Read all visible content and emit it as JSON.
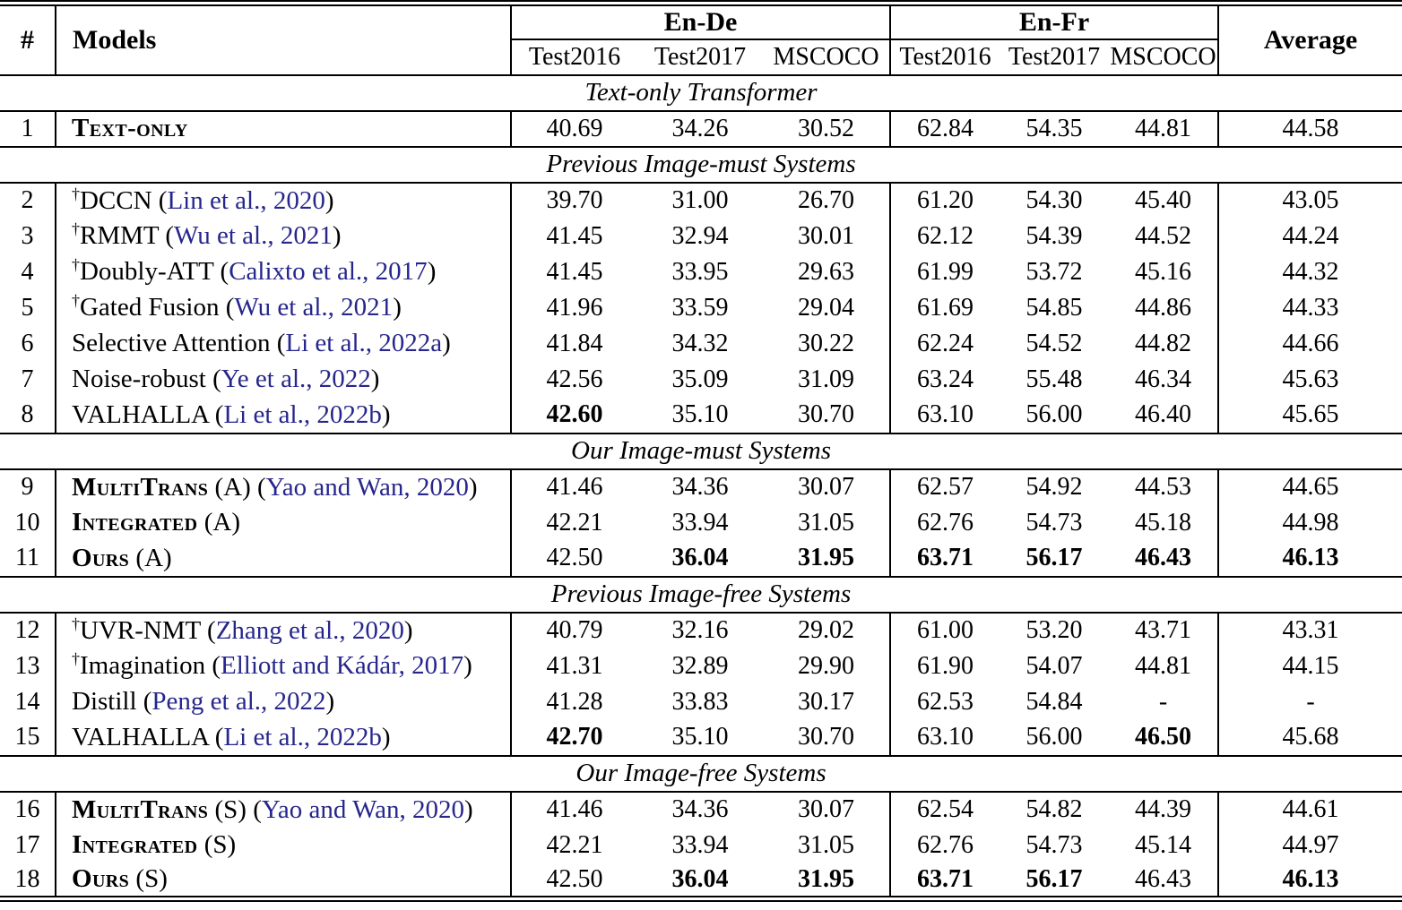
{
  "colors": {
    "citation": "#26268c",
    "text": "#000000",
    "background": "#ffffff"
  },
  "header": {
    "hash": "#",
    "models": "Models",
    "groups": [
      {
        "label": "En-De",
        "subs": [
          "Test2016",
          "Test2017",
          "MSCOCO"
        ]
      },
      {
        "label": "En-Fr",
        "subs": [
          "Test2016",
          "Test2017",
          "MSCOCO"
        ]
      }
    ],
    "average": "Average"
  },
  "sections": [
    {
      "title": "Text-only Transformer",
      "rows": [
        {
          "num": "1",
          "dagger": "",
          "sc": "Text-only",
          "pre": "",
          "cite": "",
          "post": "",
          "values": [
            "40.69",
            "34.26",
            "30.52",
            "62.84",
            "54.35",
            "44.81",
            "44.58"
          ],
          "bold": [
            0,
            0,
            0,
            0,
            0,
            0,
            0
          ]
        }
      ]
    },
    {
      "title": "Previous Image-must Systems",
      "rows": [
        {
          "num": "2",
          "dagger": "†",
          "sc": "",
          "pre": "DCCN (",
          "cite": "Lin et al., 2020",
          "post": ")",
          "values": [
            "39.70",
            "31.00",
            "26.70",
            "61.20",
            "54.30",
            "45.40",
            "43.05"
          ],
          "bold": [
            0,
            0,
            0,
            0,
            0,
            0,
            0
          ]
        },
        {
          "num": "3",
          "dagger": "†",
          "sc": "",
          "pre": "RMMT (",
          "cite": "Wu et al., 2021",
          "post": ")",
          "values": [
            "41.45",
            "32.94",
            "30.01",
            "62.12",
            "54.39",
            "44.52",
            "44.24"
          ],
          "bold": [
            0,
            0,
            0,
            0,
            0,
            0,
            0
          ]
        },
        {
          "num": "4",
          "dagger": "†",
          "sc": "",
          "pre": "Doubly-ATT (",
          "cite": "Calixto et al., 2017",
          "post": ")",
          "values": [
            "41.45",
            "33.95",
            "29.63",
            "61.99",
            "53.72",
            "45.16",
            "44.32"
          ],
          "bold": [
            0,
            0,
            0,
            0,
            0,
            0,
            0
          ]
        },
        {
          "num": "5",
          "dagger": "†",
          "sc": "",
          "pre": "Gated Fusion (",
          "cite": "Wu et al., 2021",
          "post": ")",
          "values": [
            "41.96",
            "33.59",
            "29.04",
            "61.69",
            "54.85",
            "44.86",
            "44.33"
          ],
          "bold": [
            0,
            0,
            0,
            0,
            0,
            0,
            0
          ]
        },
        {
          "num": "6",
          "dagger": "",
          "sc": "",
          "pre": "Selective Attention (",
          "cite": "Li et al., 2022a",
          "post": ")",
          "values": [
            "41.84",
            "34.32",
            "30.22",
            "62.24",
            "54.52",
            "44.82",
            "44.66"
          ],
          "bold": [
            0,
            0,
            0,
            0,
            0,
            0,
            0
          ]
        },
        {
          "num": "7",
          "dagger": "",
          "sc": "",
          "pre": "Noise-robust (",
          "cite": "Ye et al., 2022",
          "post": ")",
          "values": [
            "42.56",
            "35.09",
            "31.09",
            "63.24",
            "55.48",
            "46.34",
            "45.63"
          ],
          "bold": [
            0,
            0,
            0,
            0,
            0,
            0,
            0
          ]
        },
        {
          "num": "8",
          "dagger": "",
          "sc": "",
          "pre": "VALHALLA (",
          "cite": "Li et al., 2022b",
          "post": ")",
          "values": [
            "42.60",
            "35.10",
            "30.70",
            "63.10",
            "56.00",
            "46.40",
            "45.65"
          ],
          "bold": [
            1,
            0,
            0,
            0,
            0,
            0,
            0
          ]
        }
      ]
    },
    {
      "title": "Our Image-must Systems",
      "rows": [
        {
          "num": "9",
          "dagger": "",
          "sc": "MultiTrans",
          "pre": " (A) (",
          "cite": "Yao and Wan, 2020",
          "post": ")",
          "values": [
            "41.46",
            "34.36",
            "30.07",
            "62.57",
            "54.92",
            "44.53",
            "44.65"
          ],
          "bold": [
            0,
            0,
            0,
            0,
            0,
            0,
            0
          ]
        },
        {
          "num": "10",
          "dagger": "",
          "sc": "Integrated",
          "pre": " (A)",
          "cite": "",
          "post": "",
          "values": [
            "42.21",
            "33.94",
            "31.05",
            "62.76",
            "54.73",
            "45.18",
            "44.98"
          ],
          "bold": [
            0,
            0,
            0,
            0,
            0,
            0,
            0
          ]
        },
        {
          "num": "11",
          "dagger": "",
          "sc": "Ours",
          "pre": " (A)",
          "cite": "",
          "post": "",
          "values": [
            "42.50",
            "36.04",
            "31.95",
            "63.71",
            "56.17",
            "46.43",
            "46.13"
          ],
          "bold": [
            0,
            1,
            1,
            1,
            1,
            1,
            1
          ]
        }
      ]
    },
    {
      "title": "Previous Image-free Systems",
      "rows": [
        {
          "num": "12",
          "dagger": "†",
          "sc": "",
          "pre": "UVR-NMT (",
          "cite": "Zhang et al., 2020",
          "post": ")",
          "values": [
            "40.79",
            "32.16",
            "29.02",
            "61.00",
            "53.20",
            "43.71",
            "43.31"
          ],
          "bold": [
            0,
            0,
            0,
            0,
            0,
            0,
            0
          ]
        },
        {
          "num": "13",
          "dagger": "†",
          "sc": "",
          "pre": "Imagination (",
          "cite": "Elliott and Kádár, 2017",
          "post": ")",
          "values": [
            "41.31",
            "32.89",
            "29.90",
            "61.90",
            "54.07",
            "44.81",
            "44.15"
          ],
          "bold": [
            0,
            0,
            0,
            0,
            0,
            0,
            0
          ]
        },
        {
          "num": "14",
          "dagger": "",
          "sc": "",
          "pre": "Distill (",
          "cite": "Peng et al., 2022",
          "post": ")",
          "values": [
            "41.28",
            "33.83",
            "30.17",
            "62.53",
            "54.84",
            "-",
            "-"
          ],
          "bold": [
            0,
            0,
            0,
            0,
            0,
            0,
            0
          ]
        },
        {
          "num": "15",
          "dagger": "",
          "sc": "",
          "pre": "VALHALLA (",
          "cite": "Li et al., 2022b",
          "post": ")",
          "values": [
            "42.70",
            "35.10",
            "30.70",
            "63.10",
            "56.00",
            "46.50",
            "45.68"
          ],
          "bold": [
            1,
            0,
            0,
            0,
            0,
            1,
            0
          ]
        }
      ]
    },
    {
      "title": "Our Image-free Systems",
      "rows": [
        {
          "num": "16",
          "dagger": "",
          "sc": "MultiTrans",
          "pre": " (S) (",
          "cite": "Yao and Wan, 2020",
          "post": ")",
          "values": [
            "41.46",
            "34.36",
            "30.07",
            "62.54",
            "54.82",
            "44.39",
            "44.61"
          ],
          "bold": [
            0,
            0,
            0,
            0,
            0,
            0,
            0
          ]
        },
        {
          "num": "17",
          "dagger": "",
          "sc": "Integrated",
          "pre": " (S)",
          "cite": "",
          "post": "",
          "values": [
            "42.21",
            "33.94",
            "31.05",
            "62.76",
            "54.73",
            "45.14",
            "44.97"
          ],
          "bold": [
            0,
            0,
            0,
            0,
            0,
            0,
            0
          ]
        },
        {
          "num": "18",
          "dagger": "",
          "sc": "Ours",
          "pre": " (S)",
          "cite": "",
          "post": "",
          "values": [
            "42.50",
            "36.04",
            "31.95",
            "63.71",
            "56.17",
            "46.43",
            "46.13"
          ],
          "bold": [
            0,
            1,
            1,
            1,
            1,
            0,
            1
          ]
        }
      ]
    }
  ]
}
